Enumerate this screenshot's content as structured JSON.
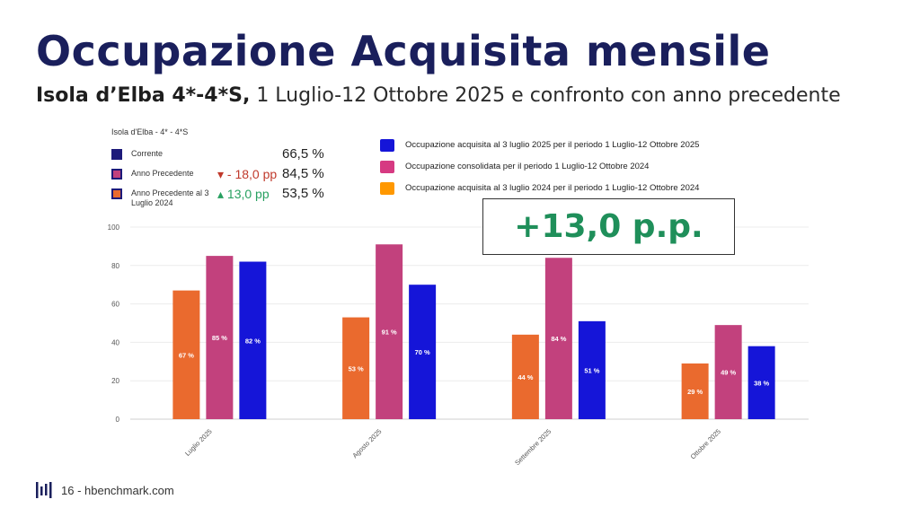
{
  "header": {
    "title": "Occupazione Acquisita mensile",
    "subtitle_bold": "Isola d’Elba 4*-4*S,",
    "subtitle_rest": " 1 Luglio-12 Ottobre 2025 e confronto con anno precedente"
  },
  "kpi": {
    "header": "Isola d'Elba - 4* - 4*S",
    "rows": [
      {
        "label": "Corrente",
        "delta": "",
        "value": "66,5 %",
        "swatch": "#1d1a7a"
      },
      {
        "label": "Anno Precedente",
        "delta": "▾ - 18,0 pp",
        "delta_color": "#c0392b",
        "value": "84,5 %",
        "swatch": "#c2417d"
      },
      {
        "label": "Anno Precedente al 3 Luglio 2024",
        "delta": "▴ 13,0 pp",
        "delta_color": "#27a060",
        "value": "53,5 %",
        "swatch": "#ea6a2e"
      }
    ]
  },
  "legend": [
    {
      "label": "Occupazione acquisita al 3 luglio 2025 per il periodo 1 Luglio-12 Ottobre 2025",
      "color": "#1515d8"
    },
    {
      "label": "Occupazione consolidata per il periodo 1 Luglio-12 Ottobre 2024",
      "color": "#d63a82"
    },
    {
      "label": "Occupazione acquisita al 3 luglio 2024 per il periodo 1 Luglio-12 Ottobre 2024",
      "color": "#ff9800"
    }
  ],
  "callout": "+13,0 p.p.",
  "footer": {
    "text": "16 - hbenchmark.com"
  },
  "chart_data": {
    "type": "bar",
    "categories": [
      "Luglio 2025",
      "Agosto 2025",
      "Settembre 2025",
      "Ottobre 2025"
    ],
    "series": [
      {
        "values": [
          67,
          53,
          44,
          29
        ],
        "labels": [
          "67 %",
          "53 %",
          "44 %",
          "29 %"
        ],
        "color": "#ea6a2e"
      },
      {
        "values": [
          85,
          91,
          84,
          49
        ],
        "labels": [
          "85 %",
          "91 %",
          "84 %",
          "49 %"
        ],
        "color": "#c2417d"
      },
      {
        "values": [
          82,
          70,
          51,
          38
        ],
        "labels": [
          "82 %",
          "70 %",
          "51 %",
          "38 %"
        ],
        "color": "#1515d8"
      }
    ],
    "yticks": [
      0,
      20,
      40,
      60,
      80,
      100
    ],
    "ylim": [
      0,
      100
    ],
    "grid": true
  }
}
